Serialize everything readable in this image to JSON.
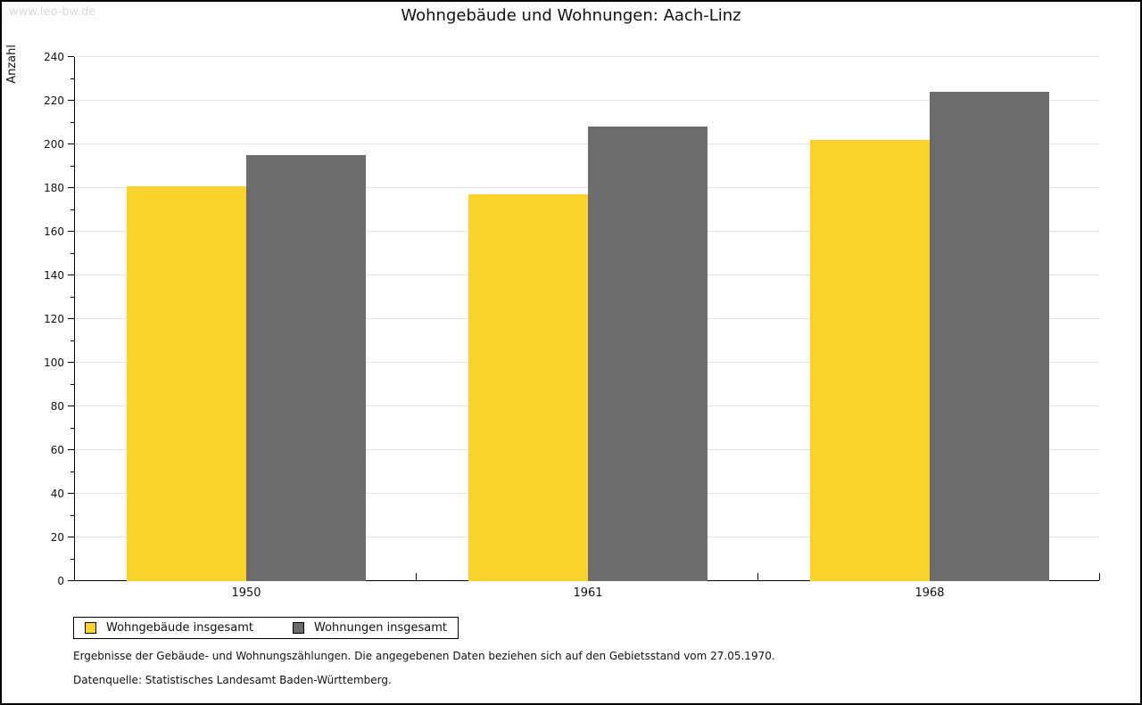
{
  "watermark": "www.leo-bw.de",
  "chart_data": {
    "type": "bar",
    "title": "Wohngebäude und Wohnungen: Aach-Linz",
    "categories": [
      "1950",
      "1961",
      "1968"
    ],
    "series": [
      {
        "name": "Wohngebäude insgesamt",
        "color": "#FCD32D",
        "values": [
          181,
          177,
          202
        ]
      },
      {
        "name": "Wohnungen insgesamt",
        "color": "#6C6C6C",
        "values": [
          195,
          208,
          224
        ]
      }
    ],
    "xlabel": "",
    "ylabel": "Anzahl",
    "ylim": [
      0,
      240
    ],
    "ytick_step": 20,
    "yminor_step": 10,
    "grid": true,
    "legend_position": "bottom-left"
  },
  "footer": {
    "line1": "Ergebnisse der Gebäude- und Wohnungszählungen. Die angegebenen Daten beziehen sich auf den Gebietsstand vom 27.05.1970.",
    "line2": "Datenquelle: Statistisches Landesamt Baden-Württemberg."
  },
  "colors": {
    "bar_yellow": "#FCD32D",
    "bar_gray": "#6C6C6C",
    "gridline": "#E3E3E3",
    "watermark": "#D9D9D9",
    "axis": "#000000"
  }
}
